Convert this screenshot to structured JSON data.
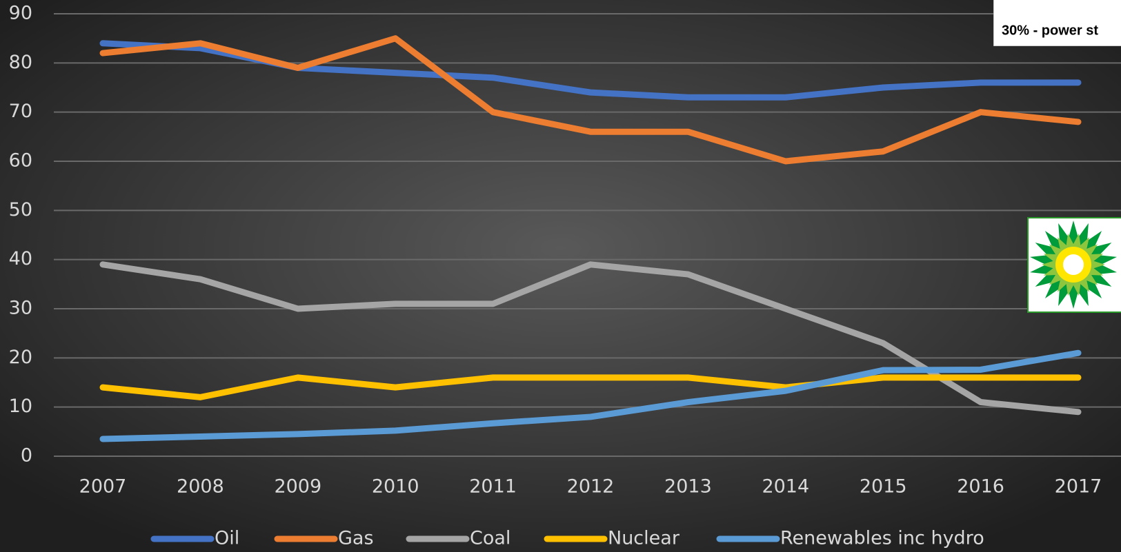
{
  "chart_data": {
    "type": "line",
    "x": [
      2007,
      2008,
      2009,
      2010,
      2011,
      2012,
      2013,
      2014,
      2015,
      2016,
      2017
    ],
    "series": [
      {
        "name": "Oil",
        "color": "#4472c4",
        "values": [
          84,
          83,
          79,
          78,
          77,
          74,
          73,
          73,
          75,
          76,
          76
        ]
      },
      {
        "name": "Gas",
        "color": "#ed7d31",
        "values": [
          82,
          84,
          79,
          85,
          70,
          66,
          66,
          60,
          62,
          70,
          68
        ]
      },
      {
        "name": "Coal",
        "color": "#a5a5a5",
        "values": [
          39,
          36,
          30,
          31,
          31,
          39,
          37,
          30,
          23,
          11,
          9
        ]
      },
      {
        "name": "Nuclear",
        "color": "#ffc000",
        "values": [
          14,
          12,
          16,
          14,
          16,
          16,
          16,
          14,
          16,
          16,
          16
        ]
      },
      {
        "name": "Renewables inc hydro",
        "color": "#5b9bd5",
        "values": [
          3.5,
          4,
          4.5,
          5.2,
          6.7,
          8,
          11,
          13.3,
          17.5,
          17.6,
          21
        ]
      }
    ],
    "xlim": [
      2007,
      2017
    ],
    "xticks": [
      2007,
      2008,
      2009,
      2010,
      2011,
      2012,
      2013,
      2014,
      2015,
      2016,
      2017
    ],
    "ylim": [
      0,
      90
    ],
    "yticks": [
      0,
      10,
      20,
      30,
      40,
      50,
      60,
      70,
      80,
      90
    ],
    "grid": true,
    "legend": "bottom",
    "annotations": [
      "30% - power st"
    ]
  }
}
